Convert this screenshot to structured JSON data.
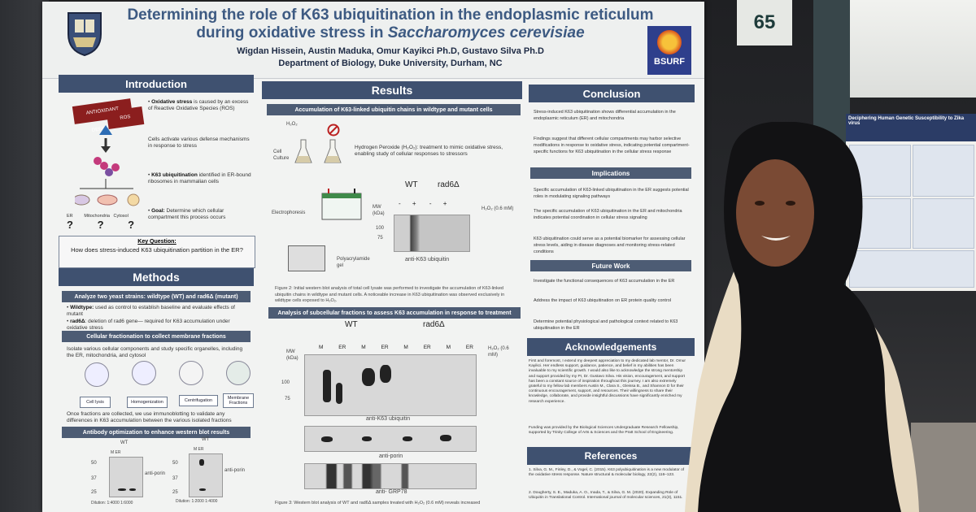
{
  "booth_number": "65",
  "poster": {
    "title_line1": "Determining the role of K63 ubiquitination in the endoplasmic reticulum",
    "title_line2_pre": "during oxidative stress in ",
    "title_line2_italic": "Saccharomyces cerevisiae",
    "authors": "Wigdan Hissein, Austin Maduka, Omur Kayikci Ph.D, Gustavo Silva Ph.D",
    "department": "Department of Biology, Duke University, Durham, NC",
    "logo_text": "BSURF",
    "sections": {
      "introduction": "Introduction",
      "results": "Results",
      "conclusion": "Conclusion",
      "methods": "Methods",
      "implications": "Implications",
      "future_work": "Future Work",
      "acknowledgements": "Acknowledgements",
      "references": "References"
    },
    "intro": {
      "card1": "ANTIOXIDANT DEFENSES",
      "card2": "ROS",
      "b1_bold": "Oxidative stress",
      "b1": " is caused by an excess of Reactive Oxidative Species (ROS)",
      "b2": "Cells activate various defense mechanisms in response to stress",
      "b3_bold": "K63 ubiquitination",
      "b3": " identified in ER-bound ribosomes in mammalian cells",
      "goal_bold": "Goal:",
      "goal": " Determine which cellular compartment this process occurs",
      "organelles": [
        "ER",
        "Mitochondria",
        "Cytosol"
      ],
      "q_marks": [
        "?",
        "?",
        "?"
      ],
      "key_q_label": "Key Question:",
      "key_q": "How does stress-induced K63 ubiquitination partition in the ER?"
    },
    "methods": {
      "sub1": "Analyze two yeast strains: wildtype (WT) and rad6Δ (mutant)",
      "wt_bold": "Wildtype:",
      "wt": " used as control to establish baseline and evaluate effects of mutant",
      "rad_bold": "rad6Δ",
      "rad": ": deletion of rad6 gene— required for K63 accumulation under oxidative stress",
      "sub2": "Cellular fractionation to collect membrane fractions",
      "iso": "Isolate various cellular components and study specific organelles, including the ER, mitochondria, and cytosol",
      "steps": [
        "Cell lysis",
        "Homogenization",
        "Centrifugation",
        "Membrane Fractions"
      ],
      "once": "Once fractions are collected, we use immunoblotting to validate any differences in K63 accumulation between the various isolated fractions",
      "sub3": "Antibody optimization to enhance western blot results",
      "wt_label": "WT",
      "mer": "M ER",
      "antiporin": "anti-porin",
      "mw": [
        "50",
        "37",
        "25"
      ],
      "dilution1": "Dilution: 1:4000  1:6000",
      "dilution2": "Dilution: 1:2000  1:4000"
    },
    "results": {
      "sub1": "Accumulation of K63-linked ubiquitin chains in wildtype and mutant cells",
      "h2o2": "H₂O₂",
      "cell_culture": "Cell Culture",
      "hp_title": "Hydrogen Peroxide (H₂O₂): treatment to mimic oxidative stress, enabling study of cellular responses to stressors",
      "electrophoresis": "Electrophoresis",
      "gel": "Polyacrylamide gel",
      "wt": "WT",
      "rad": "rad6Δ",
      "signs": [
        "-",
        "+",
        "-",
        "+"
      ],
      "mw_label": "MW (kDa)",
      "mw_vals": [
        "100",
        "75"
      ],
      "h2o2_conc": "H₂O₂ (0.6 mM)",
      "anti_k63": "anti-K63 ubiquitin",
      "fig2": "Figure 2: Initial western blot analysis of total cell lysate was performed to investigate the accumulation of K63-linked ubiquitin chains in wildtype and mutant cells. A noticeable increase in K63 ubiquitination was observed exclusively in wildtype cells exposed to H₂O₂.",
      "sub2": "Analysis of subcellular fractions to assess K63 accumulation in response to treatment",
      "fr_labels": [
        "M",
        "ER",
        "M",
        "ER",
        "M",
        "ER",
        "M",
        "ER"
      ],
      "anti_porin": "anti-porin",
      "anti_grp": "anti- GRP78",
      "fig3": "Figure 3: Western blot analysis of WT and rad6Δ samples treated with H₂O₂ (0.6 mM) reveals increased"
    },
    "conclusion": {
      "c1": "Stress-induced K63 ubiquitination shows differential accumulation in the endoplasmic reticulum (ER) and mitochondria",
      "c2": "Findings suggest that different cellular compartments may harbor selective modifications in response to oxidative stress, indicating potential compartment-specific functions for K63 ubiquitination in the cellular stress response",
      "i1": "Specific accumulation of K63-linked ubiquitination in the ER suggests potential roles in modulating signaling pathways",
      "i2": "The specific accumulation of K63 ubiquitination in the ER and mitochondria indicates potential coordination in cellular stress signaling",
      "i3": "K63 ubiquitination could serve as a potential biomarker for assessing cellular stress levels, aiding in disease diagnoses and monitoring stress-related conditions",
      "f1": "Investigate the functional consequences of K63 accumulation in the ER",
      "f2": "Address the impact of K63 ubiquitination on ER protein quality control",
      "f3": "Determine potential physiological and pathological context related to K63 ubiquitination in the ER",
      "ack": "First and foremost, I extend my deepest appreciation to my dedicated lab mentor, Dr. Omur Kayikci. Her endless support, guidance, patience, and belief in my abilities has been invaluable to my scientific growth. I would also like to acknowledge the strong mentorship and support provided by my PI, Dr. Gustavo Silva. His vision, encouragement, and support has been a constant source of inspiration throughout this journey. I am also extremely grateful to my fellow lab members Austin M., Clara S., Gleissa B., and Shannon D for their continuous encouragement, support, and resources. Their willingness to share their knowledge, collaborate, and provide insightful discussions have significantly enriched my research experience.",
      "funding": "Funding was provided by the Biological Sciences Undergraduate Research Fellowship, supported by Trinity College of Arts & Sciences and the Pratt School of Engineering.",
      "ref1": "1. Silva, G. M., Finley, D., & Vogel, C. (2015). K63 polyubiquitination is a new modulator of the oxidative stress response. Nature structural & molecular biology, 22(2), 116–123.",
      "ref2": "2. Dougherty, S. E., Maduka, A. O., Inada, T., & Silva, G. M. (2020). Expanding Role of Ubiquitin in Translational Control. International journal of molecular sciences, 21(3), 1151."
    }
  },
  "background_poster": {
    "title": "Deciphering Human Genetic Susceptibility to Zika virus"
  }
}
